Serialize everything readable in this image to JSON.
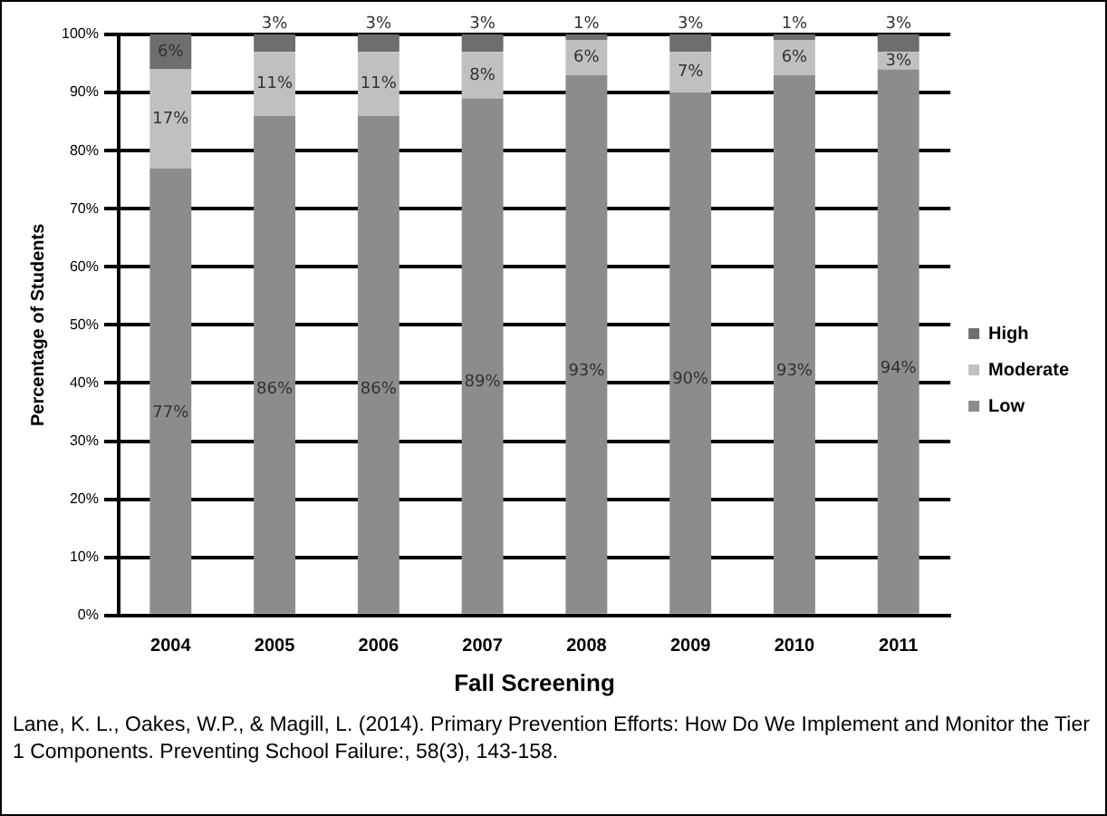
{
  "chart_data": {
    "type": "bar",
    "stacked": true,
    "xlabel": "Fall Screening",
    "ylabel": "Percentage of Students",
    "categories": [
      "2004",
      "2005",
      "2006",
      "2007",
      "2008",
      "2009",
      "2010",
      "2011"
    ],
    "series": [
      {
        "name": "Low",
        "color": "#8c8c8c",
        "values": [
          77,
          86,
          86,
          89,
          93,
          90,
          93,
          94
        ],
        "value_labels": [
          "77%",
          "86%",
          "86%",
          "89%",
          "93%",
          "90%",
          "93%",
          "94%"
        ]
      },
      {
        "name": "Moderate",
        "color": "#c0c0c0",
        "values": [
          17,
          11,
          11,
          8,
          6,
          7,
          6,
          3
        ],
        "value_labels": [
          "17%",
          "11%",
          "11%",
          "8%",
          "6%",
          "7%",
          "6%",
          "3%"
        ]
      },
      {
        "name": "High",
        "color": "#6e6e6e",
        "values": [
          6,
          3,
          3,
          3,
          1,
          3,
          1,
          3
        ],
        "value_labels": [
          "6%",
          "3%",
          "3%",
          "3%",
          "1%",
          "3%",
          "1%",
          "3%"
        ]
      }
    ],
    "ylim": [
      0,
      100
    ],
    "yticks": [
      {
        "value": 0,
        "label": "0%"
      },
      {
        "value": 10,
        "label": "10%"
      },
      {
        "value": 20,
        "label": "20%"
      },
      {
        "value": 30,
        "label": "30%"
      },
      {
        "value": 40,
        "label": "40%"
      },
      {
        "value": 50,
        "label": "50%"
      },
      {
        "value": 60,
        "label": "60%"
      },
      {
        "value": 70,
        "label": "70%"
      },
      {
        "value": 80,
        "label": "80%"
      },
      {
        "value": 90,
        "label": "90%"
      },
      {
        "value": 100,
        "label": "100%"
      }
    ],
    "grid": "y",
    "legend": "right",
    "annotations": [
      "Lane, K. L., Oakes, W.P., & Magill, L. (2014). Primary Prevention Efforts: How Do We Implement and Monitor the Tier 1 Components. Preventing School Failure:, 58(3), 143-158."
    ]
  }
}
